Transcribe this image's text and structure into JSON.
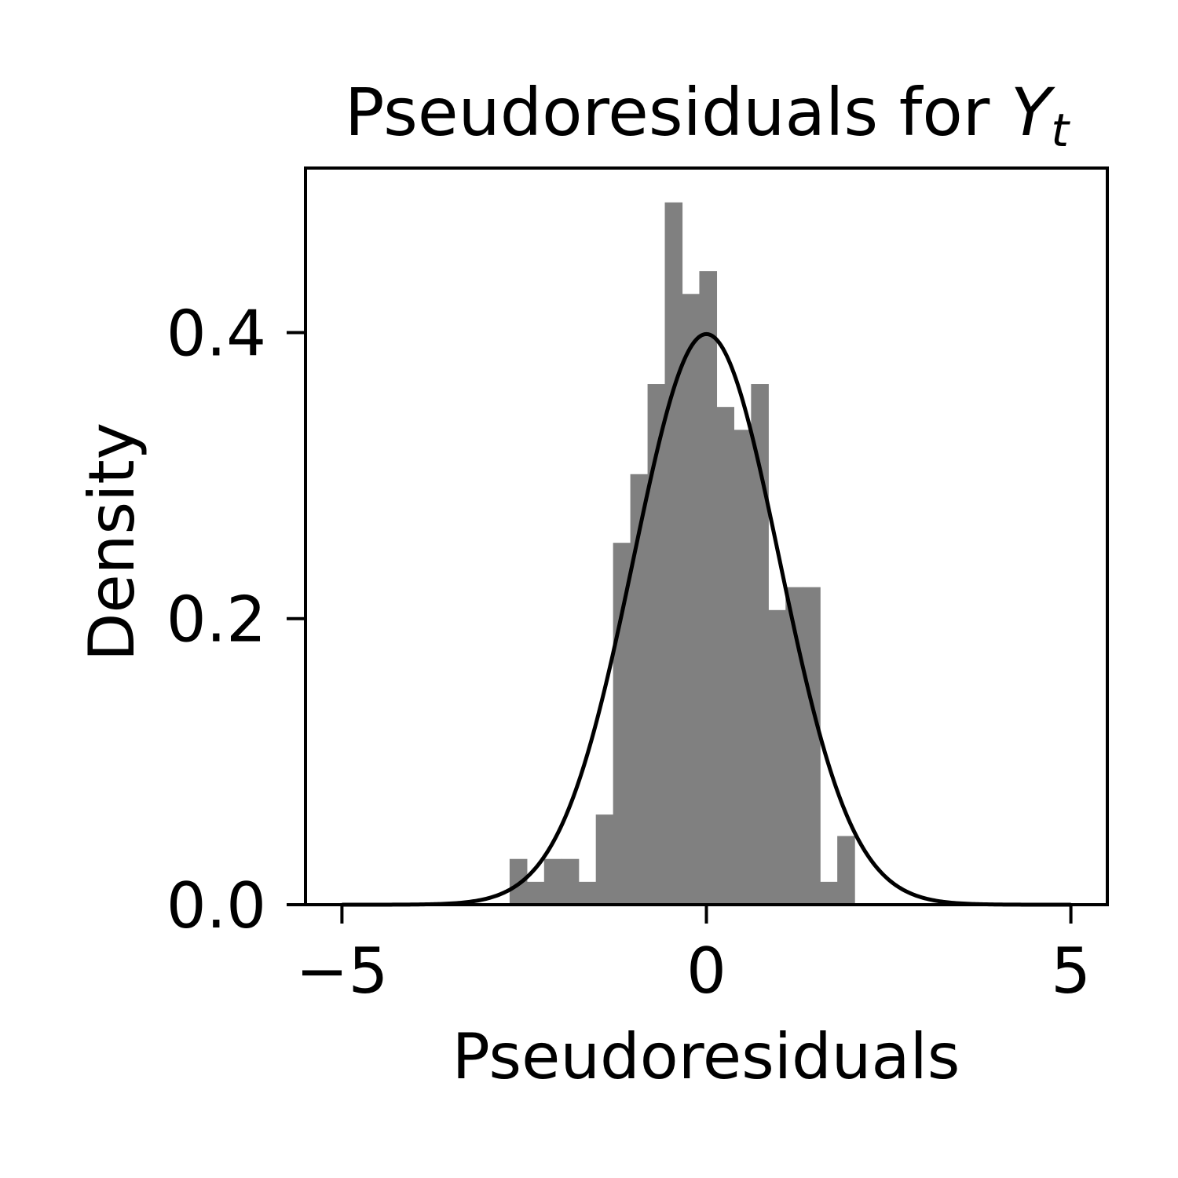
{
  "chart_data": {
    "type": "bar",
    "title_prefix": "Pseudoresiduals for ",
    "title_var": "Y",
    "title_sub": "t",
    "xlabel": "Pseudoresiduals",
    "ylabel": "Density",
    "xlim": [
      -5.5,
      5.5
    ],
    "ylim": [
      0,
      0.515
    ],
    "x_ticks": [
      -5,
      0,
      5
    ],
    "x_tick_labels": [
      "−5",
      "0",
      "5"
    ],
    "y_ticks": [
      0.0,
      0.2,
      0.4
    ],
    "y_tick_labels": [
      "0.0",
      "0.2",
      "0.4"
    ],
    "bar_color": "#808080",
    "curve_color": "#000000",
    "bin_width": 0.2366,
    "bin_start": -2.7,
    "histogram_density": [
      0.032,
      0.016,
      0.032,
      0.032,
      0.016,
      0.063,
      0.253,
      0.301,
      0.364,
      0.491,
      0.427,
      0.443,
      0.348,
      0.332,
      0.364,
      0.206,
      0.222,
      0.222,
      0.016,
      0.048
    ],
    "curve": {
      "distribution": "normal",
      "mean": 0,
      "sd": 1
    }
  }
}
